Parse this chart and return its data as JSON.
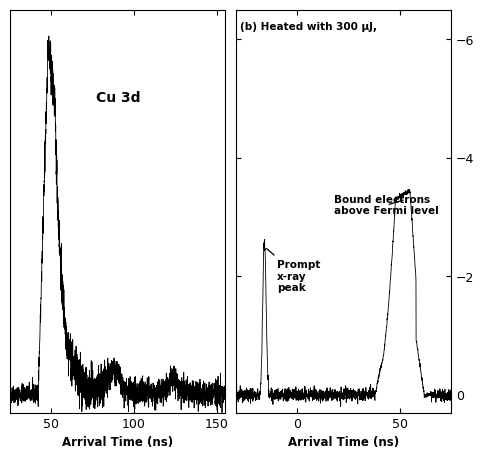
{
  "panel_a": {
    "label": "Cu 3d",
    "xlabel": "Arrival Time (ns)",
    "xlim": [
      25,
      155
    ],
    "xticks": [
      50,
      100,
      150
    ],
    "ylim_bottom": -0.05,
    "ylim_top": 1.05
  },
  "panel_b": {
    "title": "(b) Heated with 300 μJ,",
    "xlabel": "Arrival Time (ns)",
    "xlim": [
      -30,
      75
    ],
    "xticks": [
      0,
      50
    ],
    "ylim_bottom": 0.3,
    "ylim_top": -6.5,
    "yticks": [
      0,
      -2,
      -4,
      -6
    ]
  },
  "line_color": "#000000",
  "bg_color": "#ffffff",
  "noise_seed_a": 42,
  "noise_seed_b": 123
}
